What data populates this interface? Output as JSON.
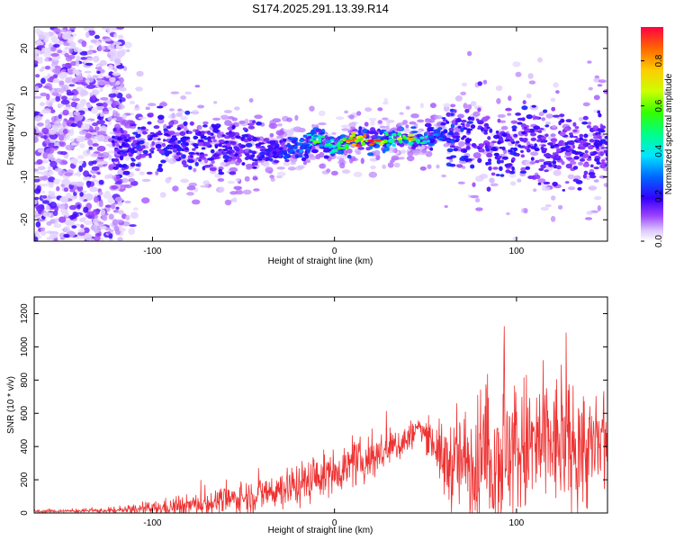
{
  "figure_title": "S174.2025.291.13.39.R14",
  "chart_data": [
    {
      "type": "heatmap",
      "title": "S174.2025.291.13.39.R14",
      "xlabel": "Height of straight line (km)",
      "ylabel": "Frequency (Hz)",
      "xlim": [
        -165,
        150
      ],
      "ylim": [
        -25,
        25
      ],
      "xticks": [
        -100,
        0,
        100
      ],
      "xtick_labels": [
        "-100",
        "0",
        "100"
      ],
      "yticks": [
        -20,
        -10,
        0,
        10,
        20
      ],
      "ytick_labels": [
        "-20",
        "-10",
        "0",
        "10",
        "20"
      ],
      "colorbar": {
        "label": "Normalized spectral amplitude",
        "range": [
          0.0,
          0.95
        ],
        "ticks": [
          0.0,
          0.2,
          0.4,
          0.6,
          0.8
        ],
        "tick_labels": [
          "0.0",
          "0.2",
          "0.4",
          "0.6",
          "0.8"
        ]
      },
      "ridge": {
        "description_points_km": [
          -120,
          -100,
          -80,
          -60,
          -40,
          -20,
          -10,
          0,
          10,
          20,
          30,
          40,
          50,
          60,
          80,
          100,
          120,
          145
        ],
        "center_hz": [
          -3,
          -2,
          -2,
          -3,
          -4,
          -3,
          -1,
          -3,
          -1,
          -1.5,
          -1,
          -1,
          -1,
          0,
          -2,
          -2,
          -3,
          -3
        ],
        "peak_amplitude": [
          0.2,
          0.25,
          0.22,
          0.2,
          0.22,
          0.3,
          0.55,
          0.5,
          0.9,
          0.95,
          0.6,
          0.75,
          0.5,
          0.3,
          0.2,
          0.22,
          0.2,
          0.2
        ]
      }
    },
    {
      "type": "line",
      "xlabel": "Height of straight line (km)",
      "ylabel": "SNR (10 * v/v)",
      "xlim": [
        -165,
        150
      ],
      "ylim": [
        0,
        1300
      ],
      "xticks": [
        -100,
        0,
        100
      ],
      "xtick_labels": [
        "-100",
        "0",
        "100"
      ],
      "yticks": [
        0,
        200,
        400,
        600,
        800,
        1000,
        1200
      ],
      "ytick_labels": [
        "0",
        "200",
        "400",
        "600",
        "800",
        "1000",
        "1200"
      ],
      "color": "#ee3333",
      "envelope": {
        "x": [
          -165,
          -140,
          -120,
          -100,
          -80,
          -60,
          -40,
          -20,
          0,
          20,
          40,
          46,
          55,
          60,
          70,
          80,
          90,
          100,
          110,
          120,
          130,
          140,
          150
        ],
        "baseline": [
          10,
          12,
          15,
          25,
          45,
          75,
          115,
          170,
          250,
          330,
          440,
          520,
          420,
          300,
          300,
          320,
          350,
          380,
          400,
          420,
          400,
          380,
          400
        ],
        "amplitude": [
          10,
          12,
          20,
          50,
          70,
          90,
          120,
          150,
          140,
          150,
          120,
          60,
          150,
          250,
          350,
          450,
          500,
          500,
          480,
          450,
          420,
          400,
          380
        ]
      }
    }
  ]
}
